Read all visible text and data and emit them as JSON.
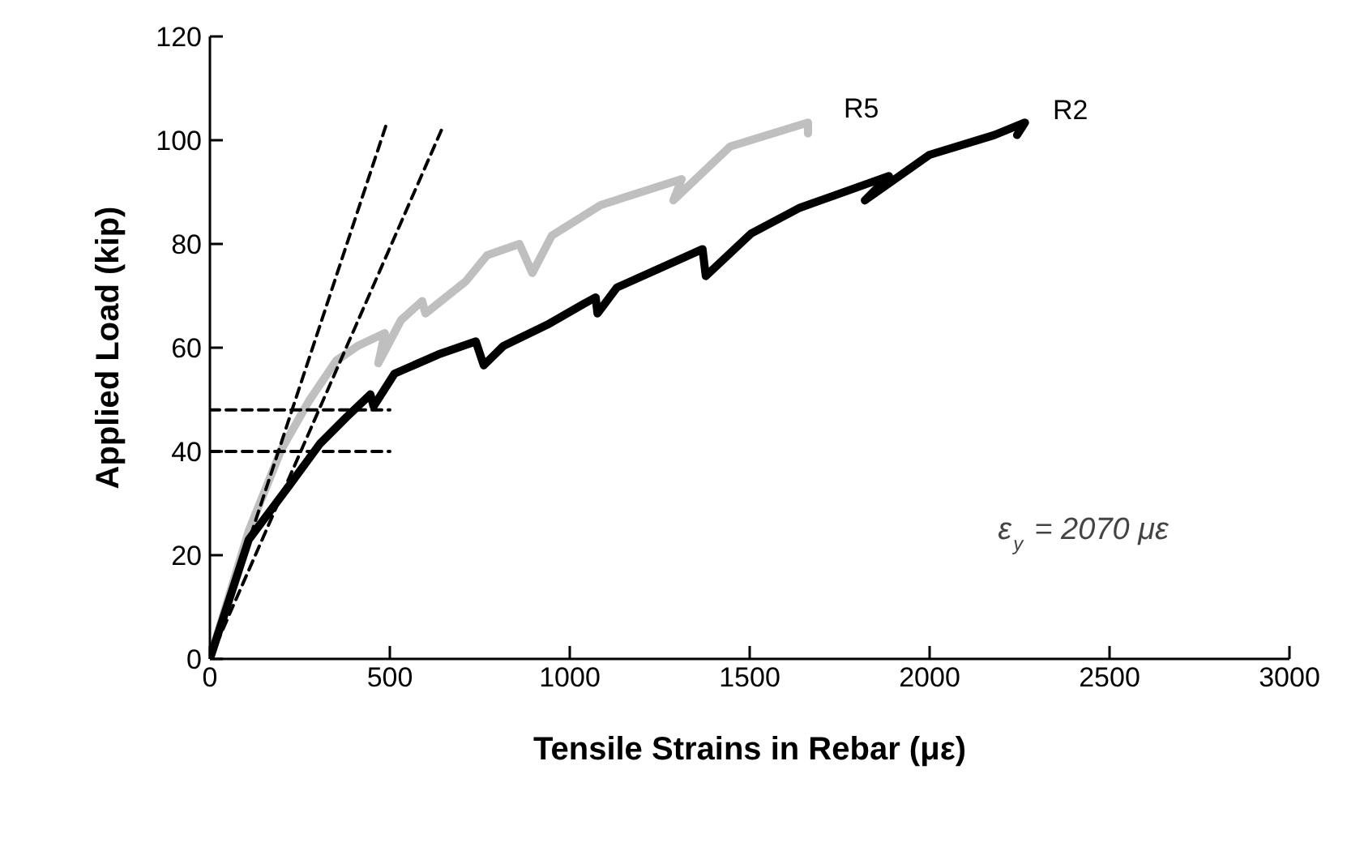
{
  "chart_data": {
    "type": "line",
    "xlabel": "Tensile Strains in Rebar (με)",
    "ylabel": "Applied Load (kip)",
    "xlim": [
      0,
      3000
    ],
    "ylim": [
      0,
      120
    ],
    "xticks": [
      0,
      500,
      1000,
      1500,
      2000,
      2500,
      3000
    ],
    "yticks": [
      0,
      20,
      40,
      60,
      80,
      100,
      120
    ],
    "grid": false,
    "marker": "none",
    "annotations": [
      "ε$_{y}$ = 2070 με"
    ],
    "series": [
      {
        "name": "R5",
        "color": "#bfbfbf",
        "line_style": "solid",
        "x": [
          0,
          108,
          198,
          275,
          351,
          410,
          486,
          468,
          531,
          590,
          599,
          711,
          770,
          860,
          896,
          950,
          1086,
          1311,
          1288,
          1446,
          1662,
          1662
        ],
        "values": [
          0,
          24.7,
          40.3,
          49.7,
          57.5,
          60.3,
          62.8,
          57,
          65.3,
          69,
          66.6,
          72.8,
          77.8,
          80,
          74.4,
          81.6,
          87.5,
          92.5,
          88.4,
          98.8,
          103.4,
          101.3
        ]
      },
      {
        "name": "R2",
        "color": "#000000",
        "line_style": "solid",
        "x": [
          0,
          108,
          216,
          306,
          378,
          446,
          455,
          513,
          635,
          739,
          761,
          815,
          937,
          1040,
          1072,
          1077,
          1131,
          1369,
          1378,
          1504,
          1640,
          1887,
          1820,
          2000,
          2180,
          2265,
          2243
        ],
        "values": [
          0,
          23,
          33,
          41.5,
          46.5,
          51,
          48.7,
          55,
          58.7,
          61.2,
          56.6,
          60.3,
          64.4,
          68.5,
          69.7,
          66.6,
          71.6,
          79,
          73.8,
          82,
          87,
          93.1,
          88.4,
          97.2,
          101,
          103.4,
          101
        ]
      },
      {
        "color": "#000000",
        "line_style": "dashed",
        "x": [
          0,
          490
        ],
        "values": [
          0,
          103
        ]
      },
      {
        "color": "#000000",
        "line_style": "dashed",
        "x": [
          0,
          650
        ],
        "values": [
          0,
          103
        ]
      },
      {
        "color": "#000000",
        "line_style": "dashed",
        "x": [
          0,
          500
        ],
        "values": [
          48,
          48
        ]
      },
      {
        "color": "#000000",
        "line_style": "dashed",
        "x": [
          0,
          500
        ],
        "values": [
          40,
          40
        ]
      }
    ]
  }
}
